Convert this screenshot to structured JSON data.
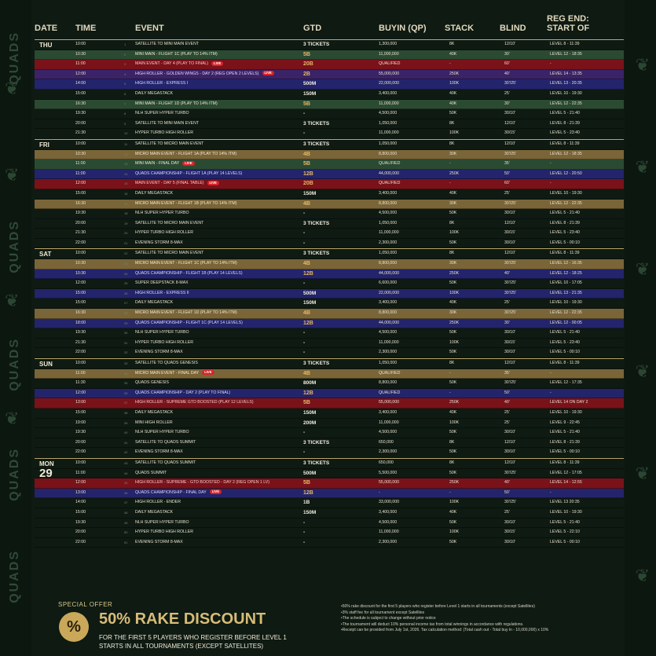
{
  "brand": "QUADS",
  "headers": {
    "date": "DATE",
    "time": "TIME",
    "event": "EVENT",
    "gtd": "GTD",
    "buyin": "BUYIN (QP)",
    "stack": "STACK",
    "blind": "BLIND",
    "reg": "REG END:\nSTART OF"
  },
  "days": [
    {
      "name": "THU",
      "num": "25",
      "rows": [
        [
          "10:00",
          "1",
          "SATELLITE TO MINI MAIN EVENT",
          "3 TICKETS",
          "1,300,000",
          "8K",
          "12/10'",
          "LEVEL 8 - 11:39",
          "t-dark",
          "w",
          ""
        ],
        [
          "10:30",
          "2",
          "MINI MAIN - FLIGHT 1C (PLAY TO 14% ITM)",
          "5B",
          "11,000,000",
          "40K",
          "30'",
          "LEVEL 12 - 18:35",
          "t-green",
          "b",
          ""
        ],
        [
          "11:00",
          "3",
          "MAIN EVENT - DAY 4 (PLAY TO FINAL)",
          "20B",
          "QUALIFIED",
          "-",
          "60'",
          "-",
          "t-red",
          "b",
          "LIVE"
        ],
        [
          "12:00",
          "4",
          "HIGH ROLLER - GOLDEN WINGS - DAY 2 (REG OPEN 2 LEVELS)",
          "2B",
          "55,000,000",
          "250K",
          "40'",
          "LEVEL 14 - 13:35",
          "t-purple",
          "b",
          "LIVE"
        ],
        [
          "14:00",
          "5",
          "HIGH ROLLER - EXPRESS I",
          "500M",
          "22,000,000",
          "100K",
          "30'/25'",
          "LEVEL 13 - 20:35",
          "t-blue",
          "w",
          ""
        ],
        [
          "15:00",
          "6",
          "DAILY MEGASTACK",
          "150M",
          "3,400,000",
          "40K",
          "25'",
          "LEVEL 10 - 19:30",
          "t-dark",
          "w",
          ""
        ],
        [
          "16:30",
          "7",
          "MINI MAIN - FLIGHT 1D (PLAY TO 14% ITM)",
          "5B",
          "11,000,000",
          "40K",
          "30'",
          "LEVEL 12 - 22:35",
          "t-green",
          "b",
          ""
        ],
        [
          "19:30",
          "8",
          "NLH SUPER HYPER TURBO",
          "-",
          "4,500,000",
          "50K",
          "30/10'",
          "LEVEL 5 - 21:40",
          "t-dark",
          "w",
          ""
        ],
        [
          "20:00",
          "9",
          "SATELLITE TO MINI MAIN EVENT",
          "3 TICKETS",
          "1,050,000",
          "8K",
          "12/10'",
          "LEVEL 8 - 21:39",
          "t-dark",
          "w",
          ""
        ],
        [
          "21:30",
          "10",
          "HYPER TURBO HIGH ROLLER",
          "-",
          "11,000,000",
          "100K",
          "30/15'",
          "LEVEL 5 - 23:40",
          "t-dark",
          "w",
          ""
        ]
      ]
    },
    {
      "name": "FRI",
      "num": "26",
      "rows": [
        [
          "10:00",
          "11",
          "SATELLITE TO MICRO MAIN EVENT",
          "3 TICKETS",
          "1,050,000",
          "8K",
          "12/10'",
          "LEVEL 8 - 11:39",
          "t-dark",
          "w",
          ""
        ],
        [
          "10:30",
          "12",
          "MICRO MAIN EVENT - FLIGHT 1A (PLAY TO 14% ITM)",
          "4B",
          "8,800,000",
          "30K",
          "30'/25'",
          "LEVEL 12 - 18:35",
          "t-gold",
          "b",
          ""
        ],
        [
          "11:00",
          "13",
          "MINI MAIN - FINAL DAY",
          "5B",
          "QUALIFIED",
          "-",
          "35'",
          "-",
          "t-green",
          "b",
          "LIVE"
        ],
        [
          "11:00",
          "14",
          "QUADS CHAMPIONSHIP - FLIGHT 1A (PLAY 14 LEVELS)",
          "12B",
          "44,000,000",
          "250K",
          "50'",
          "LEVEL 12 - 20:50",
          "t-blue",
          "b",
          ""
        ],
        [
          "12:00",
          "15",
          "MAIN EVENT - DAY 5 (FINAL TABLE)",
          "20B",
          "QUALIFIED",
          "-",
          "60'",
          "-",
          "t-red",
          "b",
          "LIVE"
        ],
        [
          "15:00",
          "16",
          "DAILY MEGASTACK",
          "150M",
          "3,400,000",
          "40K",
          "25'",
          "LEVEL 10 - 19:30",
          "t-dark",
          "w",
          ""
        ],
        [
          "16:30",
          "17",
          "MICRO MAIN EVENT - FLIGHT 1B (PLAY TO 14% ITM)",
          "4B",
          "8,800,000",
          "30K",
          "30'/25'",
          "LEVEL 12 - 22:35",
          "t-gold",
          "b",
          ""
        ],
        [
          "19:30",
          "18",
          "NLH SUPER HYPER TURBO",
          "-",
          "4,500,000",
          "50K",
          "30/10'",
          "LEVEL 5 - 21:40",
          "t-dark",
          "w",
          ""
        ],
        [
          "20:00",
          "19",
          "SATELLITE TO MICRO MAIN EVENT",
          "3 TICKETS",
          "1,050,000",
          "8K",
          "12/10'",
          "LEVEL 8 - 21:39",
          "t-dark",
          "w",
          ""
        ],
        [
          "21:30",
          "20",
          "HYPER TURBO HIGH ROLLER",
          "-",
          "11,000,000",
          "100K",
          "30/15'",
          "LEVEL 5 - 23:40",
          "t-dark",
          "w",
          ""
        ],
        [
          "22:00",
          "21",
          "EVENING STORM 8-MAX",
          "-",
          "2,300,000",
          "50K",
          "30/10'",
          "LEVEL 5 - 00:10",
          "t-dark",
          "w",
          ""
        ]
      ]
    },
    {
      "name": "SAT",
      "num": "27",
      "rows": [
        [
          "10:00",
          "22",
          "SATELLITE TO MICRO MAIN EVENT",
          "3 TICKETS",
          "1,050,000",
          "8K",
          "12/10'",
          "LEVEL 8 - 11:39",
          "t-dark",
          "w",
          ""
        ],
        [
          "10:30",
          "23",
          "MICRO MAIN EVENT - FLIGHT 1C (PLAY TO 14% ITM)",
          "4B",
          "8,800,000",
          "30K",
          "30'/25'",
          "LEVEL 12 - 16:35",
          "t-gold",
          "b",
          ""
        ],
        [
          "10:30",
          "24",
          "QUADS CHAMPIONSHIP - FLIGHT 1B (PLAY 14 LEVELS)",
          "12B",
          "44,000,000",
          "250K",
          "40'",
          "LEVEL 12 - 18:25",
          "t-blue",
          "b",
          ""
        ],
        [
          "12:00",
          "25",
          "SUPER DEEPSTACK 8-MAX",
          "-",
          "6,600,000",
          "50K",
          "30'/25'",
          "LEVEL 10 - 17:05",
          "t-dark",
          "w",
          ""
        ],
        [
          "15:00",
          "26",
          "HIGH ROLLER - EXPRESS II",
          "500M",
          "22,000,000",
          "100K",
          "30'/25'",
          "LEVEL 13 - 21:35",
          "t-blue",
          "w",
          ""
        ],
        [
          "15:00",
          "27",
          "DAILY MEGASTACK",
          "150M",
          "3,400,000",
          "40K",
          "25'",
          "LEVEL 10 - 19:30",
          "t-dark",
          "w",
          ""
        ],
        [
          "16:30",
          "28",
          "MICRO MAIN EVENT - FLIGHT 1D (PLAY TO 14% ITM)",
          "4B",
          "8,800,000",
          "30K",
          "30'/25'",
          "LEVEL 12 - 22:35",
          "t-gold",
          "b",
          ""
        ],
        [
          "18:00",
          "29",
          "QUADS CHAMPIONSHIP - FLIGHT 1C (PLAY 14 LEVELS)",
          "12B",
          "44,000,000",
          "250K",
          "30'",
          "LEVEL 12 - 00:05",
          "t-blue",
          "b",
          ""
        ],
        [
          "19:30",
          "30",
          "NLH SUPER HYPER TURBO",
          "-",
          "4,500,000",
          "50K",
          "30/10'",
          "LEVEL 5 - 21:40",
          "t-dark",
          "w",
          ""
        ],
        [
          "21:30",
          "31",
          "HYPER TURBO HIGH ROLLER",
          "-",
          "11,000,000",
          "100K",
          "30/15'",
          "LEVEL 5 - 23:40",
          "t-dark",
          "w",
          ""
        ],
        [
          "22:00",
          "32",
          "EVENING STORM 8-MAX",
          "-",
          "2,300,000",
          "50K",
          "30/10'",
          "LEVEL 5 - 00:10",
          "t-dark",
          "w",
          ""
        ]
      ]
    },
    {
      "name": "SUN",
      "num": "28",
      "rows": [
        [
          "10:00",
          "33",
          "SATELLITE TO QUADS GENESIS",
          "3 TICKETS",
          "1,050,000",
          "8K",
          "12/10'",
          "LEVEL 8 - 11:39",
          "t-dark",
          "w",
          ""
        ],
        [
          "11:00",
          "34",
          "MICRO MAIN EVENT - FINAL DAY",
          "4B",
          "QUALIFIED",
          "-",
          "35'",
          "-",
          "t-gold",
          "b",
          "LIVE"
        ],
        [
          "11:30",
          "35",
          "QUADS GENESIS",
          "800M",
          "8,800,000",
          "50K",
          "30'/25'",
          "LEVEL 12 - 17:35",
          "t-dark",
          "w",
          ""
        ],
        [
          "12:00",
          "36",
          "QUADS CHAMPIONSHIP - DAY 2 (PLAY TO FINAL)",
          "12B",
          "QUALIFIED",
          "-",
          "50'",
          "-",
          "t-blue",
          "b",
          ""
        ],
        [
          "13:00",
          "37",
          "HIGH ROLLER - SUPREME GTD BOOSTED (PLAY 12 LEVELS)",
          "5B",
          "55,000,000",
          "250K",
          "40'",
          "LEVEL 14 ON DAY 2",
          "t-red",
          "b",
          ""
        ],
        [
          "15:00",
          "38",
          "DAILY MEGASTACK",
          "150M",
          "3,400,000",
          "40K",
          "25'",
          "LEVEL 10 - 19:30",
          "t-dark",
          "w",
          ""
        ],
        [
          "19:00",
          "39",
          "MINI HIGH ROLLER",
          "200M",
          "11,000,000",
          "100K",
          "25'",
          "LEVEL 9 - 22:45",
          "t-dark",
          "w",
          ""
        ],
        [
          "19:30",
          "40",
          "NLH SUPER HYPER TURBO",
          "-",
          "4,500,000",
          "50K",
          "30/10'",
          "LEVEL 5 - 21:40",
          "t-dark",
          "w",
          ""
        ],
        [
          "20:00",
          "41",
          "SATELLITE TO QUADS SUMMIT",
          "3 TICKETS",
          "650,000",
          "8K",
          "12/10'",
          "LEVEL 8 - 21:39",
          "t-dark",
          "w",
          ""
        ],
        [
          "22:00",
          "42",
          "EVENING STORM 8-MAX",
          "-",
          "2,300,000",
          "50K",
          "30/10'",
          "LEVEL 5 - 00:10",
          "t-dark",
          "w",
          ""
        ]
      ]
    },
    {
      "name": "MON",
      "num": "29",
      "rows": [
        [
          "10:00",
          "43",
          "SATELLITE TO QUADS SUMMIT",
          "3 TICKETS",
          "650,000",
          "8K",
          "12/10'",
          "LEVEL 8 - 11:39",
          "t-dark",
          "w",
          ""
        ],
        [
          "11:00",
          "44",
          "QUADS SUMMIT",
          "500M",
          "5,500,000",
          "50K",
          "30'/25'",
          "LEVEL 12 - 17:05",
          "t-dark",
          "w",
          ""
        ],
        [
          "12:00",
          "45",
          "HIGH ROLLER - SUPREME - GTD BOOSTED - DAY 2 (REG OPEN 1 LV)",
          "5B",
          "55,000,000",
          "250K",
          "40'",
          "LEVEL 14 - 12:55",
          "t-red",
          "b",
          ""
        ],
        [
          "13:00",
          "46",
          "QUADS CHAMPIONSHIP - FINAL DAY",
          "12B",
          "-",
          "-",
          "50'",
          "-",
          "t-blue",
          "b",
          "LIVE"
        ],
        [
          "14:00",
          "47",
          "HIGH ROLLER - ENDER",
          "1B",
          "33,000,000",
          "100K",
          "30'/25'",
          "LEVEL 13 20:35",
          "t-dark",
          "w",
          ""
        ],
        [
          "15:00",
          "48",
          "DAILY MEGASTACK",
          "150M",
          "3,400,000",
          "40K",
          "25'",
          "LEVEL 10 - 19:30",
          "t-dark",
          "w",
          ""
        ],
        [
          "19:30",
          "49",
          "NLH SUPER HYPER TURBO",
          "-",
          "4,500,000",
          "50K",
          "30/10'",
          "LEVEL 5 - 21:40",
          "t-dark",
          "w",
          ""
        ],
        [
          "20:00",
          "50",
          "HYPER TURBO HIGH ROLLER",
          "-",
          "11,000,000",
          "100K",
          "30/15'",
          "LEVEL 5 - 22:10",
          "t-dark",
          "w",
          ""
        ],
        [
          "22:00",
          "51",
          "EVENING STORM 8-MAX",
          "-",
          "2,300,000",
          "50K",
          "30/10'",
          "LEVEL 5 - 00:10",
          "t-dark",
          "w",
          ""
        ]
      ]
    }
  ],
  "promo": {
    "label": "SPECIAL OFFER",
    "icon": "%",
    "title": "50% RAKE DISCOUNT",
    "subtitle": "FOR THE FIRST 5 PLAYERS WHO REGISTER BEFORE LEVEL 1 STARTS IN ALL TOURNAMENTS (EXCEPT SATELLITES)"
  },
  "notes": [
    "•50% rake discount for the first 5 players who register before Level 1 starts in all tournaments (except Satellites)",
    "•3% staff fee for all tournament except Satellites",
    "•The schedule is subject to change without prior notice",
    "•The tournament will deduct 10% personal income tax from total winnings in accordance with regulations.",
    "•Receipt can be provided from July 1st, 2026. Tax calculation method: (Total cash out - Total buy in - 10,000,000) x 10%"
  ]
}
